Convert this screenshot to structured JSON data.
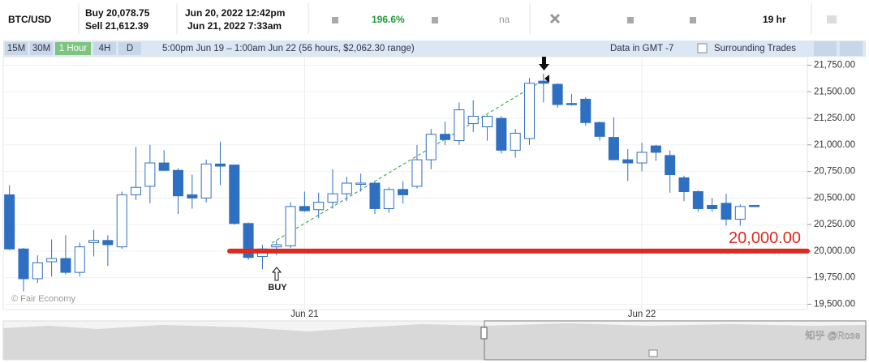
{
  "header": {
    "pair": "BTC/USD",
    "buy": "Buy 20,078.75",
    "sell": "Sell 21,612.39",
    "open_time": "Jun 20, 2022 12:42pm",
    "close_time": "Jun 21, 2022 7:33am",
    "change": "196.6%",
    "na": "na",
    "duration": "19 hr"
  },
  "toolbar": {
    "timeframes": [
      "15M",
      "30M",
      "1 Hour",
      "4H",
      "D"
    ],
    "active": "1 Hour",
    "range": "5:00pm Jun 19 – 1:00am Jun 22 (56 hours, $2,062.30 range)",
    "timezone": "Data in GMT -7",
    "surrounding": "Surrounding Trades"
  },
  "watermark": "© Fair Economy",
  "credit": "知乎 @Rose",
  "chart_data": {
    "type": "candlestick",
    "categories": [
      null,
      null,
      null,
      null,
      null,
      null,
      null,
      null,
      null,
      null,
      null,
      null,
      null,
      null,
      null,
      null,
      null,
      null,
      null,
      null,
      null,
      "Jun 21",
      null,
      null,
      null,
      null,
      null,
      null,
      null,
      null,
      null,
      null,
      null,
      null,
      null,
      null,
      null,
      null,
      null,
      null,
      null,
      null,
      null,
      null,
      null,
      "Jun 22",
      null,
      null,
      null,
      null,
      null,
      null,
      null,
      null
    ],
    "open": [
      20530,
      20020,
      19740,
      19900,
      19930,
      19800,
      20080,
      20100,
      20040,
      20530,
      20610,
      20830,
      20760,
      20530,
      20500,
      20820,
      20810,
      20260,
      19950,
      20040,
      20050,
      20420,
      20390,
      20460,
      20540,
      20630,
      20640,
      20400,
      20580,
      20610,
      20860,
      21100,
      21040,
      21200,
      21170,
      21250,
      20950,
      21060,
      21600,
      21570,
      21390,
      21430,
      21210,
      21070,
      20860,
      20830,
      20990,
      20900,
      20690,
      20560,
      20430,
      20450,
      20300,
      20430
    ],
    "high": [
      20620,
      20030,
      19960,
      20110,
      20150,
      20080,
      20200,
      20150,
      20560,
      20980,
      21000,
      20950,
      20780,
      20720,
      20860,
      21030,
      20810,
      20270,
      20060,
      20100,
      20460,
      20560,
      20550,
      20770,
      20700,
      20730,
      20650,
      20600,
      20660,
      21000,
      21150,
      21220,
      21400,
      21420,
      21280,
      21270,
      21150,
      21630,
      21670,
      21580,
      21480,
      21450,
      21220,
      21260,
      20960,
      21020,
      21000,
      20950,
      20710,
      20570,
      20500,
      20540,
      20440,
      20430
    ],
    "low": [
      20010,
      19620,
      19700,
      19760,
      19780,
      19760,
      19950,
      19860,
      20020,
      20480,
      20450,
      20760,
      20350,
      20400,
      20460,
      20620,
      20250,
      19920,
      19830,
      19960,
      20030,
      20370,
      20310,
      20400,
      20470,
      20560,
      20350,
      20360,
      20450,
      20590,
      20770,
      21000,
      21000,
      21120,
      21040,
      20920,
      20880,
      21000,
      21400,
      21350,
      21370,
      21180,
      21040,
      20860,
      20660,
      20750,
      20850,
      20550,
      20470,
      20370,
      20370,
      20240,
      20240,
      20420
    ],
    "close": [
      20020,
      19740,
      19890,
      19930,
      19800,
      20040,
      20100,
      20060,
      20530,
      20600,
      20830,
      20760,
      20520,
      20500,
      20820,
      20800,
      20260,
      19940,
      20020,
      20060,
      20420,
      20380,
      20460,
      20540,
      20640,
      20640,
      20400,
      20580,
      20530,
      20860,
      21100,
      21050,
      21330,
      21270,
      21270,
      20950,
      21110,
      21580,
      21580,
      21380,
      21380,
      21210,
      21080,
      20860,
      20830,
      20930,
      20930,
      20720,
      20560,
      20400,
      20400,
      20300,
      20420,
      20420
    ],
    "up_color": "#ffffff",
    "down_color": "#2f6fc1",
    "ylim": [
      19450,
      21830
    ],
    "yticks": [
      {
        "value": 19500,
        "label": "19,500.00"
      },
      {
        "value": 19750,
        "label": "19,750.00"
      },
      {
        "value": 20000,
        "label": "20,000.00"
      },
      {
        "value": 20250,
        "label": "20,250.00"
      },
      {
        "value": 20500,
        "label": "20,500.00"
      },
      {
        "value": 20750,
        "label": "20,750.00"
      },
      {
        "value": 21000,
        "label": "21,000.00"
      },
      {
        "value": 21250,
        "label": "21,250.00"
      },
      {
        "value": 21500,
        "label": "21,500.00"
      },
      {
        "value": 21750,
        "label": "21,750.00"
      }
    ],
    "grid": true,
    "annotations": [
      {
        "value": 20000,
        "label": "20,000.00",
        "color": "#dd2a1e"
      }
    ],
    "buy_label": "BUY"
  }
}
